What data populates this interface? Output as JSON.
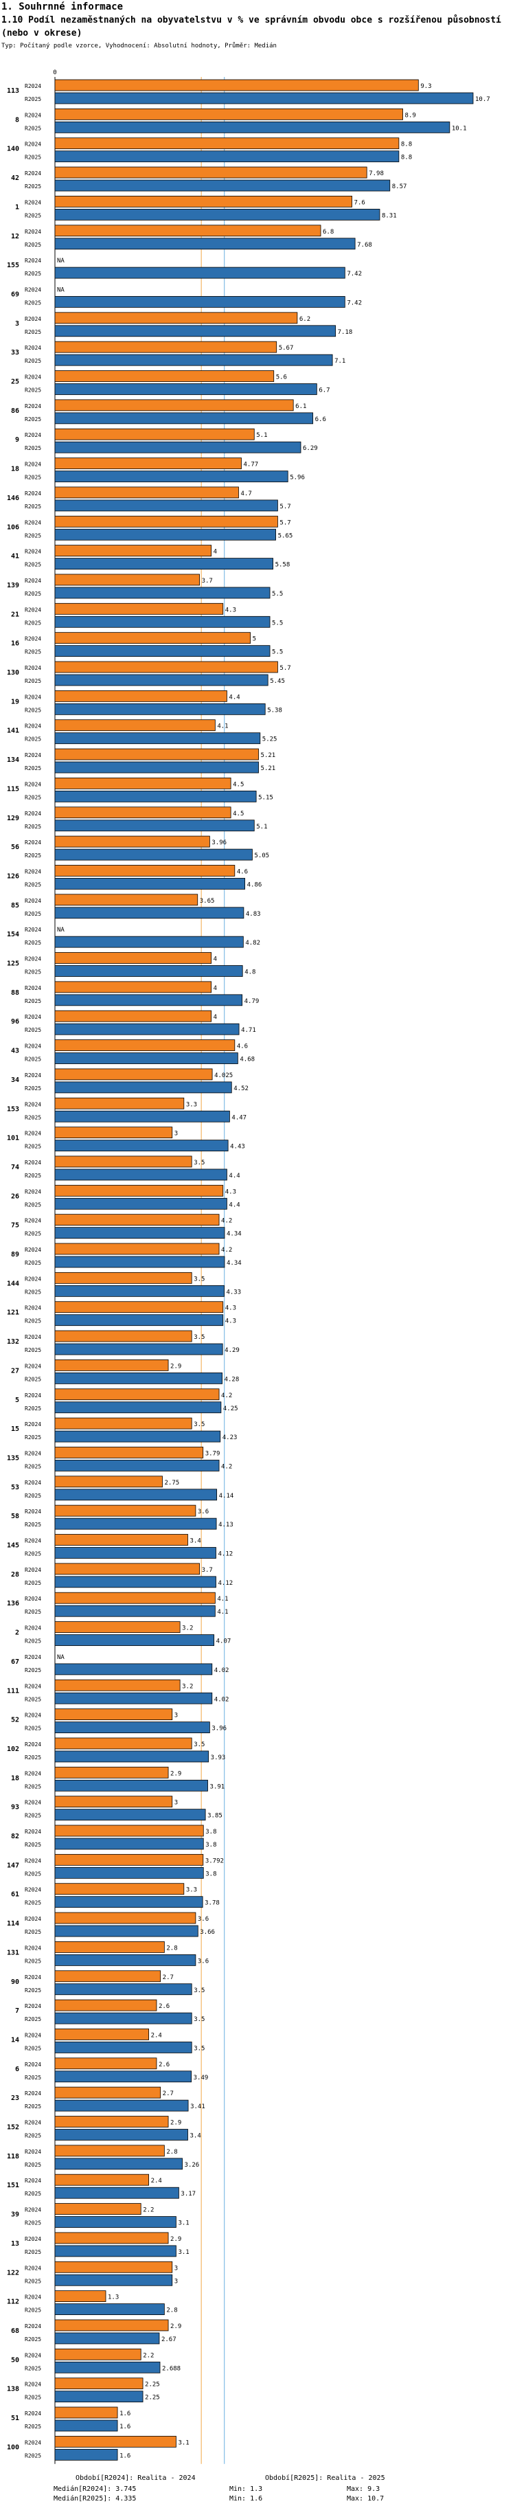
{
  "header": {
    "section": "1. Souhrnné informace",
    "title": "1.10 Podíl nezaměstnaných na obyvatelstvu v % ve správním obvodu obce s rozšířenou působností (nebo v okrese)",
    "subtitle": "Typ: Počítaný podle vzorce, Vyhodnocení: Absolutní hodnoty, Průměr: Medián"
  },
  "colors": {
    "r2024": "#F28322",
    "r2025": "#2C6FAE",
    "median2024": "#F0A848",
    "median2025": "#6AAFE0"
  },
  "chart_data": {
    "type": "bar",
    "orientation": "horizontal",
    "axis_zero_label": "0",
    "xlim": [
      0,
      10.7
    ],
    "series_labels": [
      "R2024",
      "R2025"
    ],
    "categories": [
      "113",
      "8",
      "140",
      "42",
      "1",
      "12",
      "155",
      "69",
      "3",
      "33",
      "25",
      "86",
      "9",
      "18",
      "146",
      "106",
      "41",
      "139",
      "21",
      "16",
      "130",
      "19",
      "141",
      "134",
      "115",
      "129",
      "56",
      "126",
      "85",
      "154",
      "125",
      "88",
      "96",
      "43",
      "34",
      "153",
      "101",
      "74",
      "26",
      "75",
      "89",
      "144",
      "121",
      "132",
      "27",
      "5",
      "15",
      "135",
      "53",
      "58",
      "145",
      "28",
      "136",
      "2",
      "67",
      "111",
      "52",
      "102",
      "18",
      "93",
      "82",
      "147",
      "61",
      "114",
      "131",
      "90",
      "7",
      "14",
      "6",
      "23",
      "152",
      "118",
      "151",
      "39",
      "13",
      "122",
      "112",
      "68",
      "50",
      "138",
      "51",
      "100"
    ],
    "r2024_values": [
      9.3,
      8.9,
      8.8,
      7.98,
      7.6,
      6.8,
      null,
      null,
      6.2,
      5.67,
      5.6,
      6.1,
      5.1,
      4.77,
      4.7,
      5.7,
      4,
      3.7,
      4.3,
      5,
      5.7,
      4.4,
      4.1,
      5.21,
      4.5,
      4.5,
      3.96,
      4.6,
      3.65,
      null,
      4,
      4,
      4,
      4.6,
      4.025,
      3.3,
      3,
      3.5,
      4.3,
      4.2,
      4.2,
      3.5,
      4.3,
      3.5,
      2.9,
      4.2,
      3.5,
      3.79,
      2.75,
      3.6,
      3.4,
      3.7,
      4.1,
      3.2,
      null,
      3.2,
      3,
      3.5,
      2.9,
      3,
      3.8,
      3.792,
      3.3,
      3.6,
      2.8,
      2.7,
      2.6,
      2.4,
      2.6,
      2.7,
      2.9,
      2.8,
      2.4,
      2.2,
      2.9,
      3,
      1.3,
      2.9,
      2.2,
      2.25,
      1.6,
      3.1
    ],
    "r2025_values": [
      10.7,
      10.1,
      8.8,
      8.57,
      8.31,
      7.68,
      7.42,
      7.42,
      7.18,
      7.1,
      6.7,
      6.6,
      6.29,
      5.96,
      5.7,
      5.65,
      5.58,
      5.5,
      5.5,
      5.5,
      5.45,
      5.38,
      5.25,
      5.21,
      5.15,
      5.1,
      5.05,
      4.86,
      4.83,
      4.82,
      4.8,
      4.79,
      4.71,
      4.68,
      4.52,
      4.47,
      4.43,
      4.4,
      4.4,
      4.34,
      4.34,
      4.33,
      4.3,
      4.29,
      4.28,
      4.25,
      4.23,
      4.2,
      4.14,
      4.13,
      4.12,
      4.12,
      4.1,
      4.07,
      4.02,
      4.02,
      3.96,
      3.93,
      3.91,
      3.85,
      3.8,
      3.8,
      3.78,
      3.66,
      3.6,
      3.5,
      3.5,
      3.5,
      3.49,
      3.41,
      3.4,
      3.26,
      3.17,
      3.1,
      3.1,
      3,
      2.8,
      2.67,
      2.688,
      2.25,
      1.6,
      1.6
    ],
    "r2024_value_labels": [
      "9.3",
      "8.9",
      "8.8",
      "7.98",
      "7.6",
      "6.8",
      "NA",
      "NA",
      "6.2",
      "5.67",
      "5.6",
      "6.1",
      "5.1",
      "4.77",
      "4.7",
      "5.7",
      "4",
      "3.7",
      "4.3",
      "5",
      "5.7",
      "4.4",
      "4.1",
      "5.21",
      "4.5",
      "4.5",
      "3.96",
      "4.6",
      "3.65",
      "NA",
      "4",
      "4",
      "4",
      "4.6",
      "4.025",
      "3.3",
      "3",
      "3.5",
      "4.3",
      "4.2",
      "4.2",
      "3.5",
      "4.3",
      "3.5",
      "2.9",
      "4.2",
      "3.5",
      "3.79",
      "2.75",
      "3.6",
      "3.4",
      "3.7",
      "4.1",
      "3.2",
      "NA",
      "3.2",
      "3",
      "3.5",
      "2.9",
      "3",
      "3.8",
      "3.792",
      "3.3",
      "3.6",
      "2.8",
      "2.7",
      "2.6",
      "2.4",
      "2.6",
      "2.7",
      "2.9",
      "2.8",
      "2.4",
      "2.2",
      "2.9",
      "3",
      "1.3",
      "2.9",
      "2.2",
      "2.25",
      "1.6",
      "3.1"
    ],
    "r2025_value_labels": [
      "10.7",
      "10.1",
      "8.8",
      "8.57",
      "8.31",
      "7.68",
      "7.42",
      "7.42",
      "7.18",
      "7.1",
      "6.7",
      "6.6",
      "6.29",
      "5.96",
      "5.7",
      "5.65",
      "5.58",
      "5.5",
      "5.5",
      "5.5",
      "5.45",
      "5.38",
      "5.25",
      "5.21",
      "5.15",
      "5.1",
      "5.05",
      "4.86",
      "4.83",
      "4.82",
      "4.8",
      "4.79",
      "4.71",
      "4.68",
      "4.52",
      "4.47",
      "4.43",
      "4.4",
      "4.4",
      "4.34",
      "4.34",
      "4.33",
      "4.3",
      "4.29",
      "4.28",
      "4.25",
      "4.23",
      "4.2",
      "4.14",
      "4.13",
      "4.12",
      "4.12",
      "4.1",
      "4.07",
      "4.02",
      "4.02",
      "3.96",
      "3.93",
      "3.91",
      "3.85",
      "3.8",
      "3.8",
      "3.78",
      "3.66",
      "3.6",
      "3.5",
      "3.5",
      "3.5",
      "3.49",
      "3.41",
      "3.4",
      "3.26",
      "3.17",
      "3.1",
      "3.1",
      "3",
      "2.8",
      "2.67",
      "2.688",
      "2.25",
      "1.6",
      "1.6"
    ],
    "median_r2024": 3.745,
    "median_r2025": 4.335
  },
  "legend": {
    "r2024_text": "Období[R2024]: Realita - 2024",
    "r2025_text": "Období[R2025]: Realita - 2025"
  },
  "stats": {
    "median_r2024_text": "Medián[R2024]: 3.745",
    "median_r2025_text": "Medián[R2025]: 4.335",
    "min_r2024_text": "Min: 1.3",
    "min_r2025_text": "Min: 1.6",
    "max_r2024_text": "Max: 9.3",
    "max_r2025_text": "Max: 10.7"
  }
}
